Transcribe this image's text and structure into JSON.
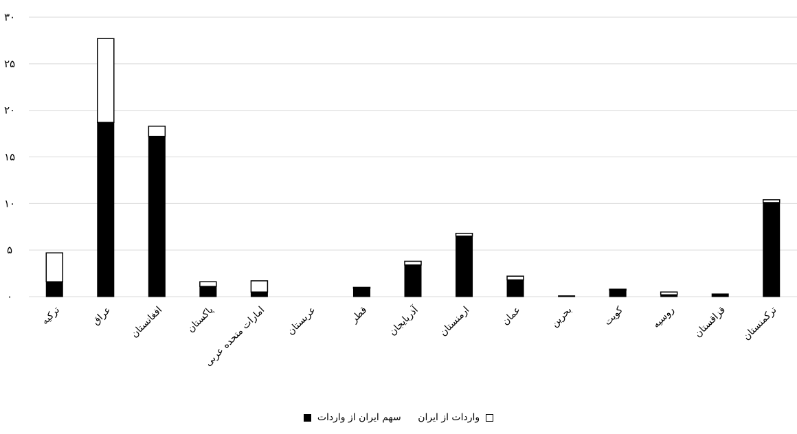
{
  "chart_data": {
    "type": "bar",
    "stacked": true,
    "title": "",
    "xlabel": "",
    "ylabel": "",
    "ylim": [
      0,
      30
    ],
    "yticks": [
      "۰",
      "۵",
      "۱۰",
      "۱۵",
      "۲۰",
      "۲۵",
      "۳۰"
    ],
    "grid": true,
    "legend_position": "bottom",
    "categories": [
      "ترکیه",
      "عراق",
      "افغانستان",
      "پاکستان",
      "امارات متحده عربی",
      "عربستان",
      "قطر",
      "آذربایجان",
      "ارمنستان",
      "عمان",
      "بحرین",
      "کویت",
      "روسیه",
      "قزاقستان",
      "ترکمنستان"
    ],
    "series": [
      {
        "name": "سهم ایران از واردات",
        "color": "#000000",
        "values": [
          1.6,
          18.7,
          17.2,
          1.1,
          0.5,
          0,
          0.9,
          3.4,
          6.5,
          1.8,
          0.1,
          0.7,
          0.2,
          0.3,
          10.1
        ]
      },
      {
        "name": "واردات از ایران",
        "color": "#ffffff",
        "values": [
          3.1,
          9.0,
          1.1,
          0.5,
          1.2,
          0,
          0.1,
          0.4,
          0.3,
          0.4,
          0,
          0.1,
          0.3,
          0,
          0.3
        ]
      }
    ]
  }
}
